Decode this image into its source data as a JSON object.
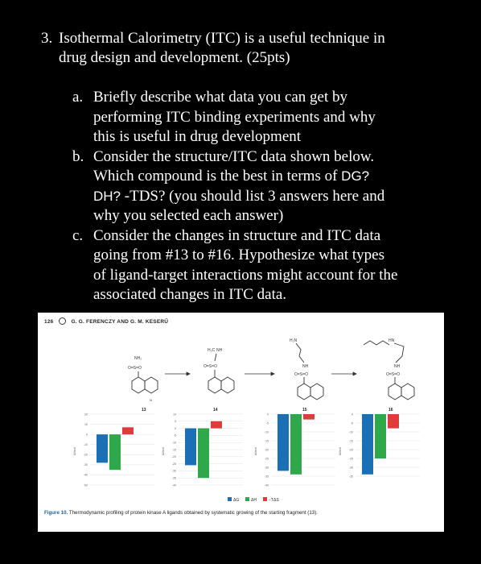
{
  "question": {
    "number": "3.",
    "title_line1": "Isothermal Calorimetry (ITC) is a useful technique in",
    "title_line2": "drug design and development. (25pts)"
  },
  "parts": [
    {
      "label": "a.",
      "lines": [
        "Briefly describe what data you can get by",
        "performing ITC binding experiments and why",
        "this is useful in drug development"
      ]
    },
    {
      "label": "b.",
      "lines_pre": "Consider the structure/ITC data shown below.",
      "line2a": "Which compound is the best in terms of ",
      "line2b": "DG?",
      "line3a": "DH?",
      "line3b": " -TDS? (you should list 3 answers here and",
      "line4": "why you selected each answer)"
    },
    {
      "label": "c.",
      "lines": [
        "Consider the changes in structure and ITC data",
        "going from #13 to #16. Hypothesize what types",
        "of ligand-target interactions might account for the",
        "associated changes in ITC data."
      ]
    }
  ],
  "figure": {
    "page_number": "126",
    "authors": "G. G. FERENCZY AND G. M. KESERŰ",
    "caption_label": "Figure 10.",
    "caption_text": " Thermodynamic profiling of protein kinase A ligands obtained by systematic growing of the starting fragment (13).",
    "legend": [
      "ΔG",
      "ΔH",
      "−TΔS"
    ],
    "colors": {
      "dG": "#1a6fb5",
      "dH": "#2ea84a",
      "TdS": "#e03a3a"
    },
    "compound_labels": [
      "13",
      "14",
      "15",
      "16"
    ],
    "y_unit": "kJ/mol"
  },
  "chart_data": [
    {
      "type": "bar",
      "compound": "13",
      "categories": [
        "ΔG",
        "ΔH",
        "−TΔS"
      ],
      "values": [
        -28,
        -35,
        7
      ],
      "ylim": [
        -50,
        20
      ],
      "ticks": [
        20,
        10,
        0,
        -10,
        -20,
        -30,
        -40,
        -50
      ]
    },
    {
      "type": "bar",
      "compound": "14",
      "categories": [
        "ΔG",
        "ΔH",
        "−TΔS"
      ],
      "values": [
        -26,
        -35,
        5
      ],
      "ylim": [
        -40,
        10
      ],
      "ticks": [
        10,
        5,
        0,
        -5,
        -10,
        -15,
        -20,
        -25,
        -30,
        -35,
        -40
      ]
    },
    {
      "type": "bar",
      "compound": "15",
      "categories": [
        "ΔG",
        "ΔH",
        "−TΔS"
      ],
      "values": [
        -32,
        -34,
        -3
      ],
      "ylim": [
        -40,
        0
      ],
      "ticks": [
        0,
        -5,
        -10,
        -15,
        -20,
        -25,
        -30,
        -35,
        -40
      ]
    },
    {
      "type": "bar",
      "compound": "16",
      "categories": [
        "ΔG",
        "ΔH",
        "−TΔS"
      ],
      "values": [
        -34,
        -25,
        -8
      ],
      "ylim": [
        -40,
        0
      ],
      "ticks": [
        0,
        -5,
        -10,
        -15,
        -20,
        -25,
        -30,
        -35
      ]
    }
  ]
}
